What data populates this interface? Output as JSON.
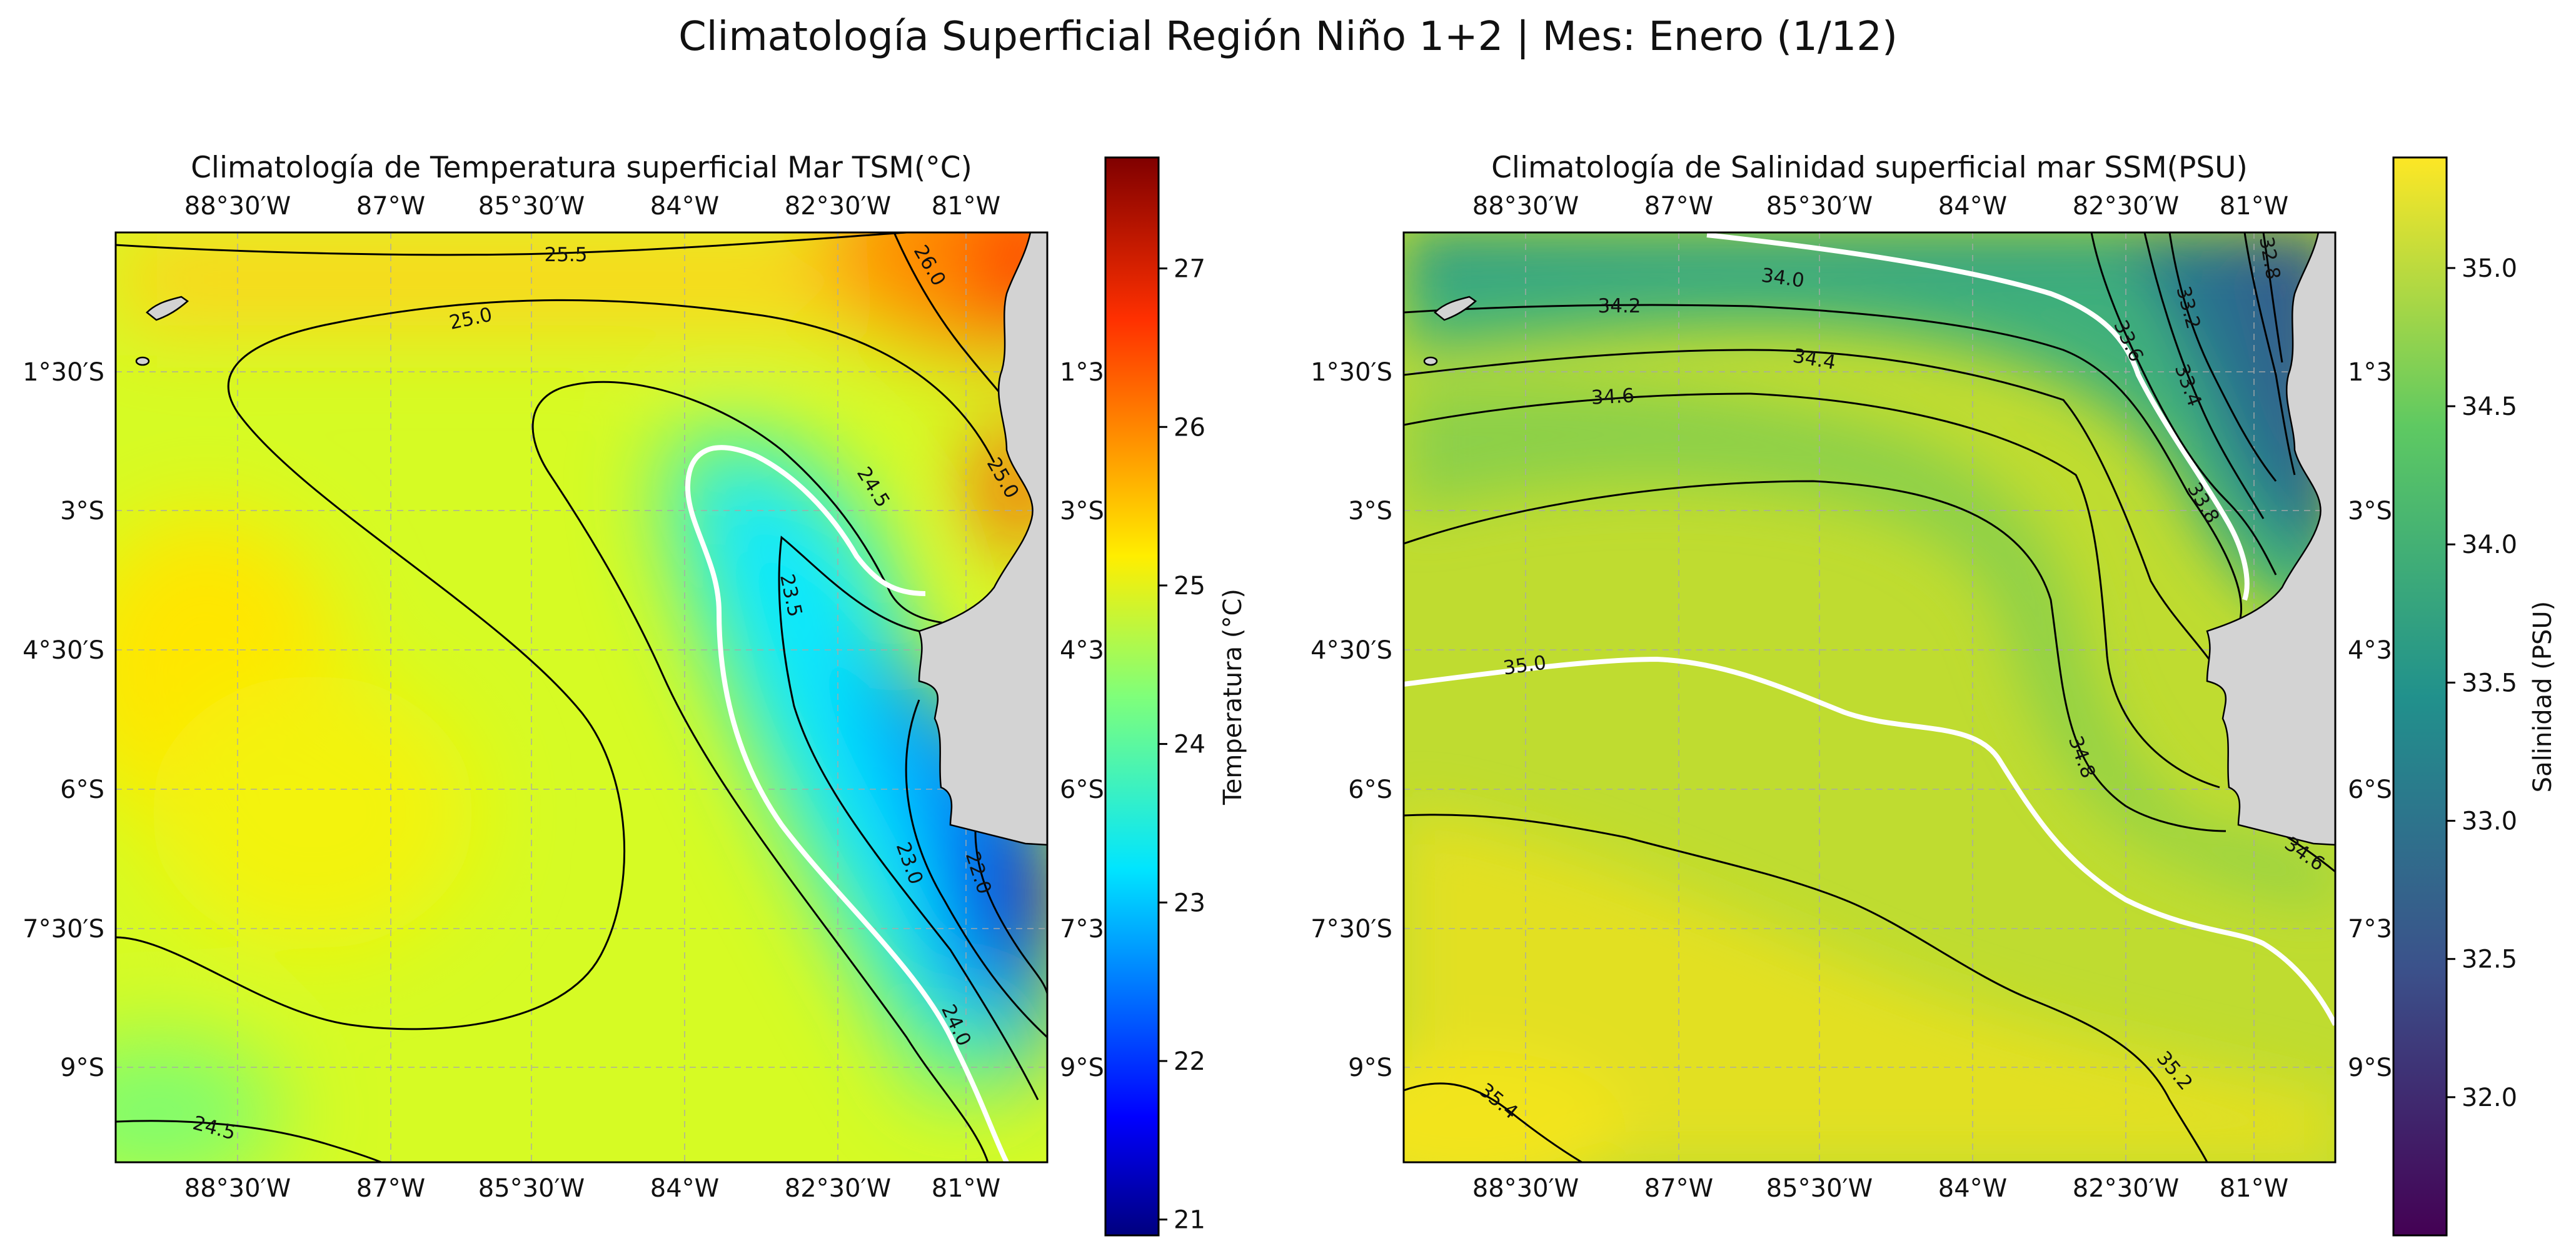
{
  "figure": {
    "title": "Climatología Superficial Región Niño 1+2 | Mes: Enero (1/12)"
  },
  "panels": [
    {
      "title": "Climatología de Temperatura superficial Mar TSM(°C)",
      "colormap": "jet",
      "colorbar": {
        "label": "Temperatura (°C)",
        "range": [
          20.9,
          27.7
        ],
        "ticks": [
          "21",
          "22",
          "23",
          "24",
          "25",
          "26",
          "27"
        ]
      },
      "contour_labels": [
        "25.5",
        "25.0",
        "26.0",
        "24.5",
        "25.0",
        "23.5",
        "23.0",
        "22.0",
        "24.0",
        "24.5"
      ]
    },
    {
      "title": "Climatología de Salinidad superficial mar SSM(PSU)",
      "colormap": "viridis",
      "colorbar": {
        "label": "Salinidad (PSU)",
        "range": [
          31.5,
          35.4
        ],
        "ticks": [
          "32.0",
          "32.5",
          "33.0",
          "33.5",
          "34.0",
          "34.5",
          "35.0"
        ]
      },
      "contour_labels": [
        "34.0",
        "34.2",
        "34.4",
        "34.6",
        "33.6",
        "33.4",
        "33.2",
        "32.8",
        "33.8",
        "35.0",
        "34.8",
        "34.6",
        "35.2",
        "35.4"
      ]
    }
  ],
  "axes": {
    "lon_ticks": [
      "88°30′W",
      "87°W",
      "85°30′W",
      "84°W",
      "82°30′W",
      "81°W"
    ],
    "lat_ticks": [
      "1°30′S",
      "3°S",
      "4°30′S",
      "6°S",
      "7°30′S",
      "9°S"
    ],
    "lat_ticks_right": [
      "1°3",
      "3°S",
      "4°3",
      "6°S",
      "7°3",
      "9°S"
    ],
    "lon_range": [
      -90,
      -79.5
    ],
    "lat_range": [
      -10.5,
      0
    ]
  },
  "chart_data": {
    "type": "heatmap",
    "region": "Niño 1+2",
    "month": "Enero",
    "lon": [
      -89.5,
      -88.0,
      -86.5,
      -85.0,
      -83.5,
      -82.0,
      -80.5
    ],
    "lat": [
      -0.5,
      -2.0,
      -3.5,
      -5.0,
      -6.5,
      -8.0,
      -9.5
    ],
    "sst_c": [
      [
        25.3,
        25.2,
        25.3,
        25.5,
        25.6,
        25.9,
        26.5
      ],
      [
        24.9,
        24.9,
        24.8,
        24.5,
        24.3,
        24.5,
        25.9
      ],
      [
        24.9,
        24.8,
        24.6,
        24.2,
        23.4,
        23.6,
        26.0
      ],
      [
        25.1,
        24.9,
        24.8,
        24.5,
        23.6,
        22.8,
        21.9
      ],
      [
        25.1,
        24.9,
        24.8,
        24.6,
        23.9,
        23.0,
        21.5
      ],
      [
        24.9,
        24.8,
        24.8,
        24.6,
        24.3,
        23.6,
        22.5
      ],
      [
        24.6,
        24.7,
        24.7,
        24.7,
        24.5,
        24.2,
        23.6
      ]
    ],
    "sss_psu": [
      [
        34.1,
        34.0,
        33.9,
        33.9,
        33.7,
        33.3,
        32.9
      ],
      [
        34.5,
        34.5,
        34.4,
        34.2,
        34.0,
        33.6,
        33.1
      ],
      [
        34.7,
        34.8,
        34.8,
        34.8,
        34.7,
        34.2,
        33.7
      ],
      [
        35.0,
        35.0,
        34.9,
        34.9,
        34.8,
        34.5,
        34.0
      ],
      [
        35.1,
        35.1,
        35.0,
        35.0,
        34.9,
        34.8,
        34.5
      ],
      [
        35.2,
        35.2,
        35.2,
        35.1,
        35.0,
        34.9,
        34.8
      ],
      [
        35.4,
        35.3,
        35.3,
        35.3,
        35.2,
        35.1,
        35.0
      ]
    ],
    "highlighted_isolines": {
      "sst_c": [
        24.0
      ],
      "sss_psu": [
        34.0,
        35.0
      ]
    }
  }
}
